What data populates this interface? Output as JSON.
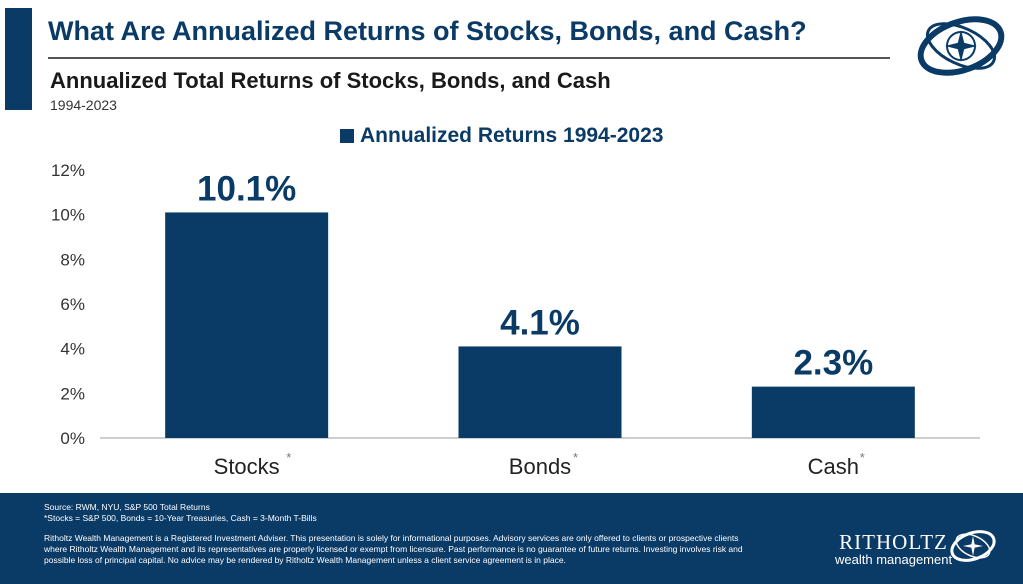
{
  "header": {
    "title": "What Are Annualized Returns of Stocks, Bonds, and Cash?",
    "subtitle": "Annualized Total Returns of Stocks, Bonds, and Cash",
    "date_range": "1994-2023"
  },
  "colors": {
    "accent": "#0a3a66",
    "bar": "#0a3a66",
    "axis": "#bfbfbf"
  },
  "chart_data": {
    "type": "bar",
    "categories": [
      "Stocks",
      "Bonds",
      "Cash"
    ],
    "category_marks": [
      "*",
      "*",
      "*"
    ],
    "series": [
      {
        "name": "Annualized Returns 1994-2023",
        "values": [
          10.1,
          4.1,
          2.3
        ]
      }
    ],
    "data_labels": [
      "10.1%",
      "4.1%",
      "2.3%"
    ],
    "yticks": [
      "0%",
      "2%",
      "4%",
      "6%",
      "8%",
      "10%",
      "12%"
    ],
    "ylim": [
      0,
      12
    ],
    "legend_position": "top-center",
    "grid": false
  },
  "footer": {
    "source": "Source: RWM, NYU, S&P 500 Total Returns",
    "note": "*Stocks = S&P 500, Bonds = 10-Year Treasuries, Cash = 3-Month T-Bills",
    "disclaimer": "Ritholtz Wealth Management is a Registered Investment Adviser. This presentation is solely for informational purposes. Advisory services are only offered to clients or prospective clients where Ritholtz Wealth Management and its representatives are properly licensed or exempt from licensure. Past performance is no guarantee of future returns. Investing involves risk and possible loss of principal capital. No advice may be rendered by Ritholtz Wealth Management unless a client service agreement is in place.",
    "brand_name": "RITHOLTZ",
    "brand_sub": "wealth management"
  }
}
